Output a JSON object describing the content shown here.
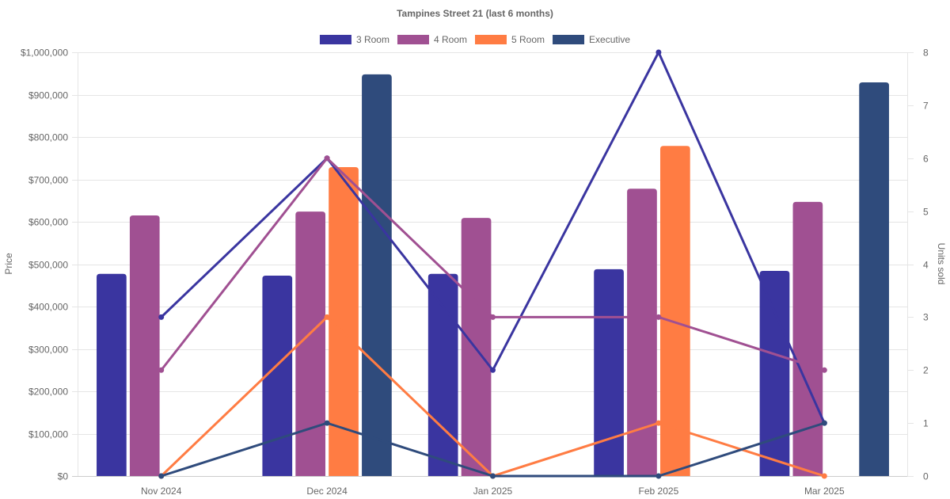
{
  "chart_data": {
    "type": "bar",
    "title": "Tampines Street 21 (last 6 months)",
    "categories": [
      "Nov 2024",
      "Dec 2024",
      "Jan 2025",
      "Feb 2025",
      "Mar 2025"
    ],
    "ylabel": "Price",
    "y2label": "Units sold",
    "ylim": [
      0,
      1000000
    ],
    "y2lim": [
      0,
      8
    ],
    "y_ticks": [
      "$0",
      "$100,000",
      "$200,000",
      "$300,000",
      "$400,000",
      "$500,000",
      "$600,000",
      "$700,000",
      "$800,000",
      "$900,000",
      "$1,000,000"
    ],
    "y_tick_values": [
      0,
      100000,
      200000,
      300000,
      400000,
      500000,
      600000,
      700000,
      800000,
      900000,
      1000000
    ],
    "y2_ticks": [
      "0",
      "1",
      "2",
      "3",
      "4",
      "5",
      "6",
      "7",
      "8"
    ],
    "y2_tick_values": [
      0,
      1,
      2,
      3,
      4,
      5,
      6,
      7,
      8
    ],
    "grid": true,
    "legend_position": "top-center",
    "legend": [
      "3 Room",
      "4 Room",
      "5 Room",
      "Executive"
    ],
    "series": [
      {
        "name": "3 Room",
        "color": "#3a35a0",
        "price": [
          477000,
          473000,
          477000,
          488000,
          484000
        ],
        "units": [
          3,
          6,
          2,
          8,
          1
        ]
      },
      {
        "name": "4 Room",
        "color": "#a05092",
        "price": [
          615000,
          624000,
          609000,
          678000,
          647000
        ],
        "units": [
          2,
          6,
          3,
          3,
          2
        ]
      },
      {
        "name": "5 Room",
        "color": "#ff7c43",
        "price": [
          0,
          729000,
          0,
          779000,
          0
        ],
        "units": [
          0,
          3,
          0,
          1,
          0
        ]
      },
      {
        "name": "Executive",
        "color": "#2f4b7c",
        "price": [
          0,
          948000,
          0,
          0,
          929000
        ],
        "units": [
          0,
          1,
          0,
          0,
          1
        ]
      }
    ]
  }
}
